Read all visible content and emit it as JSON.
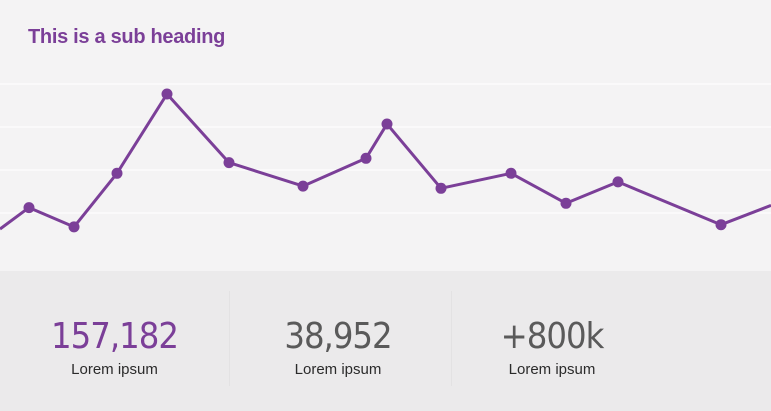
{
  "heading": "This is a sub heading",
  "colors": {
    "accent": "#7b3f98",
    "stat_neutral": "#5a5a5a",
    "top_bg": "#f4f3f4",
    "bottom_bg": "#ebeaeb"
  },
  "chart_data": {
    "type": "line",
    "title": "",
    "xlabel": "",
    "ylabel": "",
    "grid": true,
    "series": [
      {
        "values": [
          0.37,
          0.47,
          0.38,
          0.63,
          1.0,
          0.68,
          0.57,
          0.7,
          0.86,
          0.56,
          0.63,
          0.49,
          0.59,
          0.39,
          0.48
        ]
      }
    ]
  },
  "stats": [
    {
      "value": "157,182",
      "label": "Lorem ipsum",
      "color": "#7b3f98"
    },
    {
      "value": "38,952",
      "label": "Lorem ipsum",
      "color": "#5a5a5a"
    },
    {
      "value": "+800k",
      "label": "Lorem ipsum",
      "color": "#5a5a5a"
    }
  ]
}
